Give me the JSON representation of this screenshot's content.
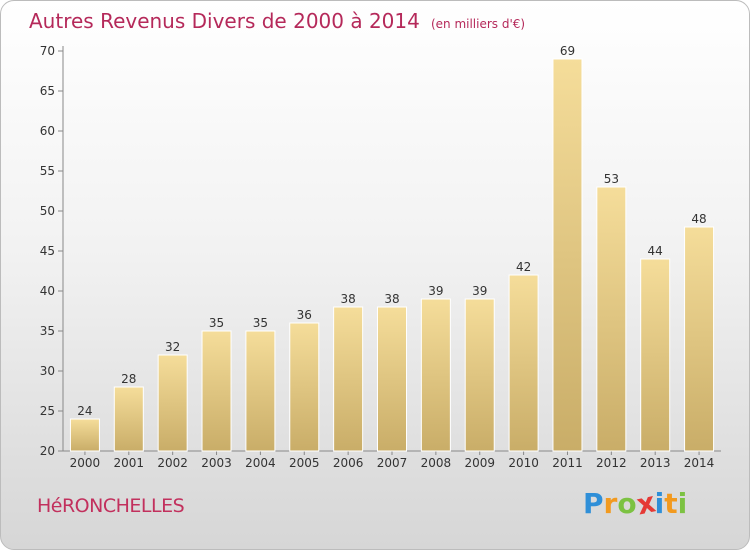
{
  "header": {
    "title": "Autres Revenus Divers de 2000 à 2014",
    "subtitle": "(en milliers d'€)"
  },
  "footer": {
    "commune": "HéRONCHELLES",
    "logo": {
      "text": "Proxiti",
      "letters": [
        "P",
        "r",
        "o",
        "x",
        "i",
        "t",
        "i"
      ],
      "colors": [
        "#2f8fd8",
        "#f29a1f",
        "#7cc242",
        "#e53935",
        "#2f8fd8",
        "#f29a1f",
        "#7cc242"
      ]
    }
  },
  "colors": {
    "bar_top": "#f5dd9a",
    "bar_bottom": "#c9ad68",
    "bar_edge": "#ffffff",
    "title": "#b5295a"
  },
  "chart_data": {
    "type": "bar",
    "title": "Autres Revenus Divers de 2000 à 2014",
    "subtitle": "(en milliers d'€)",
    "categories": [
      "2000",
      "2001",
      "2002",
      "2003",
      "2004",
      "2005",
      "2006",
      "2007",
      "2008",
      "2009",
      "2010",
      "2011",
      "2012",
      "2013",
      "2014"
    ],
    "values": [
      24,
      28,
      32,
      35,
      35,
      36,
      38,
      38,
      39,
      39,
      42,
      69,
      53,
      44,
      48
    ],
    "data_labels": [
      "24",
      "28",
      "32",
      "35",
      "35",
      "36",
      "38",
      "38",
      "39",
      "39",
      "42",
      "69",
      "53",
      "44",
      "48"
    ],
    "yticks": [
      20,
      25,
      30,
      35,
      40,
      45,
      50,
      55,
      60,
      65,
      70
    ],
    "ytick_labels": [
      "20",
      "25",
      "30",
      "35",
      "40",
      "45",
      "50",
      "55",
      "60",
      "65",
      "70"
    ],
    "ylim": [
      20,
      70
    ],
    "xlabel": "",
    "ylabel": "",
    "grid": false,
    "legend": "none"
  }
}
